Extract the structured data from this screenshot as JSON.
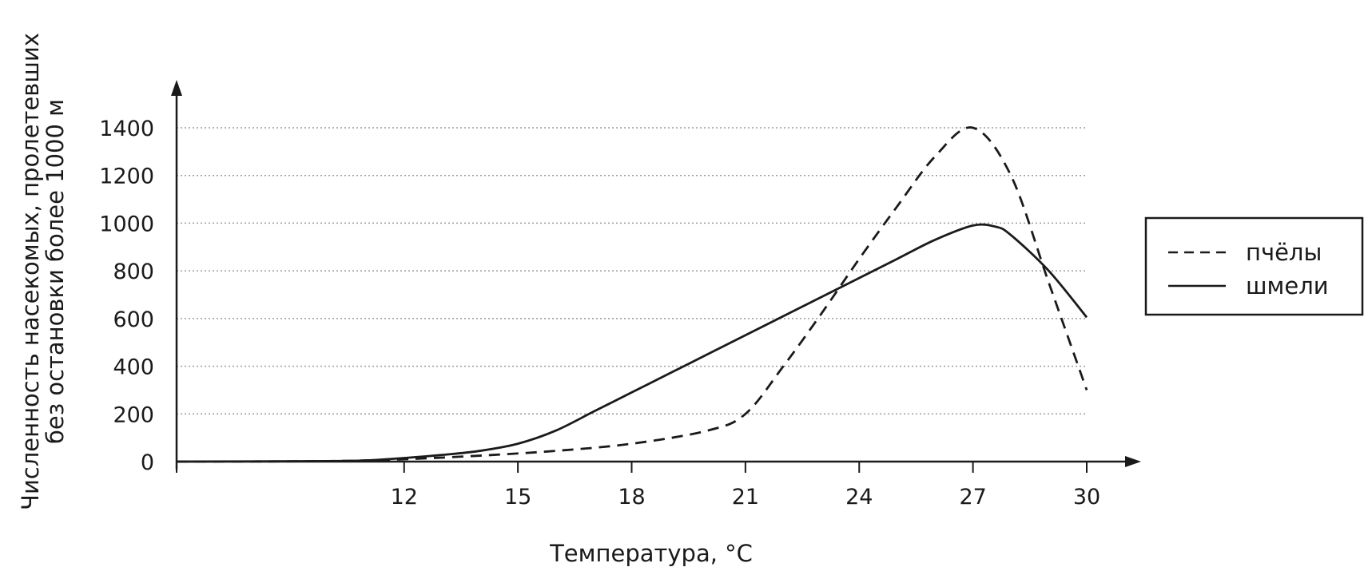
{
  "chart_data": {
    "type": "line",
    "title": "",
    "xlabel": "Температура, °C",
    "ylabel": {
      "line1": "Численность насекомых, пролетевших",
      "line2": "без остановки более 1000 м"
    },
    "xlim": [
      6,
      30
    ],
    "ylim": [
      0,
      1400
    ],
    "xticks": [
      12,
      15,
      18,
      21,
      24,
      27,
      30
    ],
    "yticks": [
      0,
      200,
      400,
      600,
      800,
      1000,
      1200,
      1400
    ],
    "grid": "horizontal dotted",
    "legend_position": "right",
    "series": [
      {
        "name": "пчёлы",
        "style": "dashed",
        "color": "#1a1a1a",
        "points": [
          [
            6,
            0
          ],
          [
            10,
            2
          ],
          [
            12,
            10
          ],
          [
            14,
            25
          ],
          [
            16,
            45
          ],
          [
            18,
            75
          ],
          [
            20,
            130
          ],
          [
            21,
            200
          ],
          [
            22,
            400
          ],
          [
            23,
            620
          ],
          [
            24,
            850
          ],
          [
            25,
            1070
          ],
          [
            26,
            1280
          ],
          [
            27,
            1400
          ],
          [
            28,
            1200
          ],
          [
            29,
            750
          ],
          [
            30,
            300
          ]
        ]
      },
      {
        "name": "шмели",
        "style": "solid",
        "color": "#1a1a1a",
        "points": [
          [
            6,
            0
          ],
          [
            10,
            2
          ],
          [
            11,
            5
          ],
          [
            12,
            15
          ],
          [
            13,
            28
          ],
          [
            14,
            45
          ],
          [
            15,
            75
          ],
          [
            16,
            130
          ],
          [
            17,
            210
          ],
          [
            18,
            290
          ],
          [
            19,
            370
          ],
          [
            20,
            450
          ],
          [
            21,
            530
          ],
          [
            22,
            610
          ],
          [
            23,
            690
          ],
          [
            24,
            770
          ],
          [
            25,
            850
          ],
          [
            26,
            930
          ],
          [
            27,
            990
          ],
          [
            27.6,
            985
          ],
          [
            28,
            950
          ],
          [
            29,
            800
          ],
          [
            30,
            605
          ]
        ]
      }
    ]
  }
}
